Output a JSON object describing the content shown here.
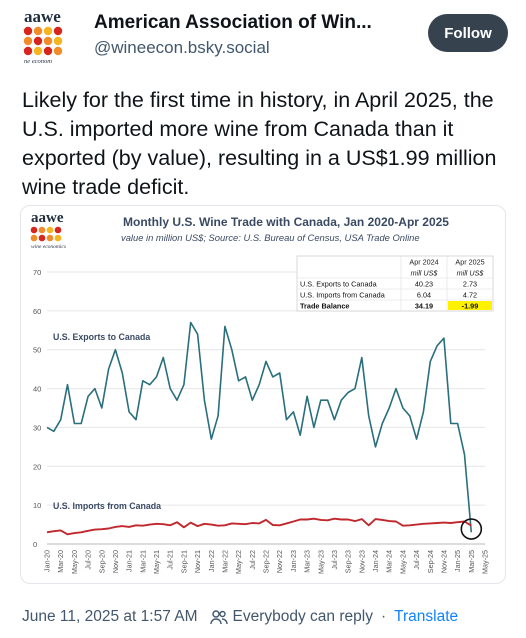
{
  "post": {
    "author_name": "American Association of Win...",
    "author_handle": "@wineecon.bsky.social",
    "follow_label": "Follow",
    "avatar_text": "aawe",
    "avatar_caption": "ne econom",
    "text": "Likely for the first time in history, in April 2025, the U.S. imported more wine from Canada than it exported (by value), resulting in a US$1.99 million wine trade deficit.",
    "timestamp": "June 11, 2025 at 1:57 AM",
    "reply_setting": "Everybody can reply",
    "translate_label": "Translate"
  },
  "figure": {
    "logo_text": "aawe",
    "logo_caption": "wine economics",
    "table": {
      "headers": [
        "",
        "Apr 2024",
        "Apr 2025"
      ],
      "subheaders": [
        "",
        "mill US$",
        "mill US$"
      ],
      "rows": [
        [
          "U.S. Exports to Canada",
          "40.23",
          "2.73"
        ],
        [
          "U.S. Imports from Canada",
          "6.04",
          "4.72"
        ],
        [
          "Trade Balance",
          "34.19",
          "-1.99"
        ]
      ],
      "highlight_color": "#fff200"
    }
  },
  "colors": {
    "exports": "#2a6f7c",
    "imports": "#c0282d",
    "title": "#3a4a63"
  },
  "chart_data": {
    "type": "line",
    "title": "Monthly U.S. Wine Trade with Canada, Jan 2020-Apr 2025",
    "subtitle": "value in million US$; Source: U.S. Bureau of Census, USA Trade Online",
    "xlabel": "",
    "ylabel": "",
    "ylim": [
      0,
      70
    ],
    "yticks": [
      0,
      10,
      20,
      30,
      40,
      50,
      60,
      70
    ],
    "xtick_labels": [
      "Jan-20",
      "Mar-20",
      "May-20",
      "Jul-20",
      "Sep-20",
      "Nov-20",
      "Jan-21",
      "Mar-21",
      "May-21",
      "Jul-21",
      "Sep-21",
      "Nov-21",
      "Jan-22",
      "Mar-22",
      "May-22",
      "Jul-22",
      "Sep-22",
      "Nov-22",
      "Jan-23",
      "Mar-23",
      "May-23",
      "Jul-23",
      "Sep-23",
      "Nov-23",
      "Jan-24",
      "Mar-24",
      "May-24",
      "Jul-24",
      "Sep-24",
      "Nov-24",
      "Jan-25",
      "Mar-25",
      "May-25"
    ],
    "grid": true,
    "series": [
      {
        "name": "U.S. Exports to Canada",
        "values": [
          30,
          29,
          32,
          41,
          31,
          31,
          38,
          40,
          35,
          45,
          50,
          44,
          34,
          32,
          42,
          41,
          43,
          48,
          40,
          37,
          41,
          57,
          54,
          37,
          27,
          33,
          56,
          50,
          42,
          43,
          37,
          41,
          47,
          43,
          44,
          32,
          34,
          28,
          38,
          30,
          37,
          37,
          32,
          37,
          39,
          40,
          48,
          33,
          25,
          31,
          35,
          40,
          35,
          33,
          27,
          34,
          47,
          51,
          53,
          31,
          31,
          23,
          3
        ]
      },
      {
        "name": "U.S. Imports from Canada",
        "values": [
          3,
          3.3,
          3.5,
          2.5,
          2.8,
          3,
          3.4,
          3.7,
          3.8,
          4,
          4.4,
          4.6,
          4.4,
          4.8,
          4.7,
          5,
          5.2,
          5.1,
          4.8,
          5.6,
          4.3,
          5.5,
          4.6,
          5.2,
          5,
          4.7,
          4.8,
          5.3,
          5.2,
          5.1,
          5.4,
          5.3,
          6.2,
          4.9,
          4.8,
          5.3,
          5.8,
          6.3,
          6.3,
          6.5,
          6.2,
          6.1,
          6.5,
          6.3,
          6.3,
          5.9,
          6.4,
          4.8,
          6.4,
          6.2,
          5.9,
          5.8,
          4.7,
          4.8,
          5,
          5.2,
          5.3,
          5.4,
          5.5,
          5.4,
          5.6,
          5.8,
          4.7
        ]
      }
    ]
  }
}
